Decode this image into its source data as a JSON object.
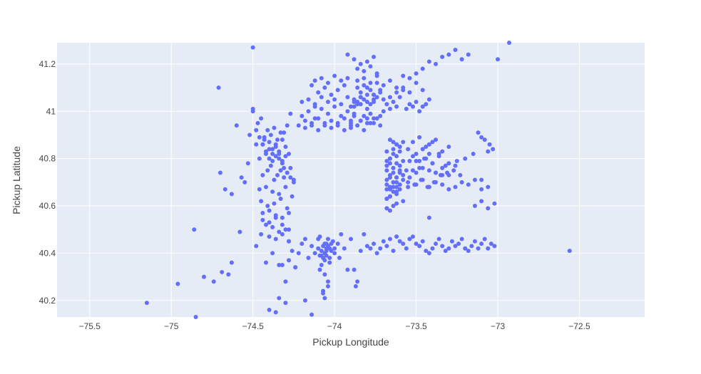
{
  "chart_data": {
    "type": "scatter",
    "xlabel": "Pickup Longitude",
    "ylabel": "Pickup Latitude",
    "xlim": [
      -75.7,
      -72.1
    ],
    "ylim": [
      40.13,
      41.29
    ],
    "x_ticks": [
      {
        "value": -75.5,
        "label": "−75.5"
      },
      {
        "value": -75,
        "label": "−75"
      },
      {
        "value": -74.5,
        "label": "−74.5"
      },
      {
        "value": -74,
        "label": "−74"
      },
      {
        "value": -73.5,
        "label": "−73.5"
      },
      {
        "value": -73,
        "label": "−73"
      },
      {
        "value": -72.5,
        "label": "−72.5"
      }
    ],
    "y_ticks": [
      {
        "value": 40.2,
        "label": "40.2"
      },
      {
        "value": 40.4,
        "label": "40.4"
      },
      {
        "value": 40.6,
        "label": "40.6"
      },
      {
        "value": 40.8,
        "label": "40.8"
      },
      {
        "value": 41.0,
        "label": "41"
      },
      {
        "value": 41.2,
        "label": "41.2"
      }
    ],
    "grid": true,
    "legend": false,
    "colors": {
      "marker": "#636efa",
      "plot_bg": "#e5ecf6",
      "grid": "#ffffff"
    },
    "x": [
      -75.15,
      -74.96,
      -74.85,
      -74.86,
      -74.8,
      -74.74,
      -74.71,
      -74.69,
      -74.67,
      -74.65,
      -74.63,
      -74.6,
      -74.58,
      -74.55,
      -74.52,
      -74.5,
      -74.48,
      -74.45,
      -74.42,
      -74.4,
      -74.38,
      -74.36,
      -74.34,
      -74.32,
      -74.3,
      -74.28,
      -74.26,
      -74.24,
      -74.22,
      -74.2,
      -74.18,
      -74.16,
      -74.14,
      -74.12,
      -74.1,
      -74.08,
      -74.06,
      -74.04,
      -74.02,
      -74.0,
      -73.98,
      -73.96,
      -73.94,
      -73.92,
      -73.9,
      -73.88,
      -73.86,
      -73.84,
      -73.82,
      -73.8,
      -73.78,
      -73.76,
      -73.74,
      -73.72,
      -73.7,
      -73.68,
      -73.66,
      -73.64,
      -73.62,
      -73.6,
      -73.58,
      -73.56,
      -73.54,
      -73.52,
      -73.5,
      -73.48,
      -73.46,
      -73.44,
      -73.42,
      -73.4,
      -73.38,
      -73.36,
      -73.34,
      -73.32,
      -73.3,
      -73.28,
      -73.26,
      -73.24,
      -73.22,
      -73.2,
      -73.18,
      -73.16,
      -73.14,
      -73.12,
      -73.1,
      -73.08,
      -73.06,
      -73.04,
      -73.02,
      -73.0,
      -72.93,
      -72.56,
      -74.48,
      -74.7,
      -74.63,
      -74.57,
      -74.53,
      -74.46,
      -74.43,
      -74.4,
      -74.38,
      -74.36,
      -74.34,
      -74.32,
      -74.31,
      -74.29,
      -74.27,
      -74.25,
      -74.44,
      -74.41,
      -74.39,
      -74.37,
      -74.35,
      -74.33,
      -74.31,
      -74.29,
      -74.27,
      -74.25,
      -74.46,
      -74.42,
      -74.38,
      -74.34,
      -74.3,
      -74.26,
      -74.45,
      -74.41,
      -74.37,
      -74.33,
      -74.29,
      -74.44,
      -74.4,
      -74.36,
      -74.32,
      -74.28,
      -74.44,
      -74.4,
      -74.36,
      -74.32,
      -74.28,
      -74.42,
      -74.38,
      -74.34,
      -74.3,
      -74.45,
      -74.41,
      -74.37,
      -74.33,
      -74.29,
      -74.47,
      -74.43,
      -74.39,
      -74.35,
      -74.31,
      -74.48,
      -74.44,
      -74.4,
      -74.36,
      -74.32,
      -74.46,
      -74.42,
      -74.38,
      -74.34,
      -74.3,
      -74.44,
      -74.4,
      -74.36,
      -74.32,
      -74.28,
      -74.42,
      -74.38,
      -74.34,
      -74.3,
      -74.4,
      -74.36,
      -74.32,
      -74.28,
      -74.09,
      -74.07,
      -74.05,
      -74.03,
      -74.01,
      -74.1,
      -74.08,
      -74.06,
      -74.04,
      -74.02,
      -74.09,
      -74.07,
      -74.05,
      -74.03,
      -74.08,
      -74.06,
      -74.04,
      -74.07,
      -74.05,
      -74.03,
      -74.06,
      -74.04,
      -74.0,
      -73.97,
      -74.09,
      -74.06,
      -73.95,
      -73.92,
      -73.87,
      -74.24,
      -74.18,
      -74.14,
      -74.28,
      -74.05,
      -74.07,
      -74.3,
      -74.34,
      -74.5,
      -74.5,
      -74.27,
      -74.12,
      -74.2,
      -74.16,
      -74.12,
      -74.08,
      -74.04,
      -74.0,
      -73.96,
      -73.92,
      -73.88,
      -73.84,
      -73.8,
      -73.76,
      -73.72,
      -74.22,
      -74.18,
      -74.14,
      -74.1,
      -74.06,
      -74.02,
      -73.98,
      -73.94,
      -73.9,
      -73.86,
      -73.82,
      -73.78,
      -73.74,
      -74.2,
      -74.16,
      -74.12,
      -74.08,
      -74.04,
      -74.0,
      -73.96,
      -73.92,
      -73.88,
      -73.84,
      -73.8,
      -73.76,
      -73.72,
      -74.14,
      -74.1,
      -74.06,
      -74.02,
      -73.98,
      -73.94,
      -73.9,
      -73.86,
      -73.82,
      -73.78,
      -74.18,
      -74.14,
      -74.1,
      -74.06,
      -74.02,
      -73.98,
      -73.94,
      -73.9,
      -73.86,
      -73.82,
      -73.78,
      -73.74,
      -74.12,
      -74.08,
      -74.04,
      -74.0,
      -73.96,
      -73.92,
      -73.88,
      -73.84,
      -73.8,
      -73.76,
      -73.9,
      -73.86,
      -73.82,
      -73.78,
      -73.74,
      -73.7,
      -73.88,
      -73.84,
      -73.8,
      -73.76,
      -73.72,
      -73.86,
      -73.82,
      -73.78,
      -73.74,
      -73.84,
      -73.8,
      -73.76,
      -73.72,
      -73.9,
      -73.86,
      -73.82,
      -73.78,
      -73.74,
      -73.88,
      -73.84,
      -73.8,
      -73.76,
      -73.92,
      -73.88,
      -73.84,
      -73.8,
      -73.76,
      -73.7,
      -73.66,
      -73.62,
      -73.58,
      -73.54,
      -73.5,
      -73.46,
      -73.42,
      -73.68,
      -73.64,
      -73.6,
      -73.56,
      -73.52,
      -73.48,
      -73.44,
      -73.66,
      -73.62,
      -73.58,
      -73.54,
      -73.5,
      -73.46,
      -73.7,
      -73.66,
      -73.62,
      -73.58,
      -73.54,
      -73.5,
      -73.46,
      -73.42,
      -73.38,
      -73.34,
      -73.3,
      -73.26,
      -73.22,
      -73.18,
      -73.14,
      -73.1,
      -73.06,
      -73.02,
      -73.68,
      -73.66,
      -73.64,
      -73.62,
      -73.6,
      -73.68,
      -73.66,
      -73.64,
      -73.62,
      -73.6,
      -73.58,
      -73.68,
      -73.66,
      -73.64,
      -73.62,
      -73.6,
      -73.58,
      -73.56,
      -73.68,
      -73.66,
      -73.64,
      -73.62,
      -73.6,
      -73.58,
      -73.68,
      -73.66,
      -73.64,
      -73.62,
      -73.6,
      -73.68,
      -73.66,
      -73.64,
      -73.62,
      -73.6,
      -73.58,
      -73.68,
      -73.66,
      -73.64,
      -73.62,
      -73.6,
      -73.68,
      -73.66,
      -73.64,
      -73.62,
      -73.68,
      -73.66,
      -73.64,
      -73.62,
      -73.6,
      -73.68,
      -73.66,
      -73.64,
      -73.62,
      -73.68,
      -73.66,
      -73.64,
      -73.55,
      -73.5,
      -73.46,
      -73.42,
      -73.38,
      -73.34,
      -73.3,
      -73.26,
      -73.22,
      -73.18,
      -73.14,
      -73.1,
      -73.06,
      -73.55,
      -73.51,
      -73.47,
      -73.43,
      -73.39,
      -73.35,
      -73.31,
      -73.27,
      -73.23,
      -73.54,
      -73.5,
      -73.46,
      -73.42,
      -73.38,
      -73.34,
      -73.3,
      -73.26,
      -73.52,
      -73.48,
      -73.44,
      -73.4,
      -73.36,
      -73.32,
      -73.54,
      -73.5,
      -73.46,
      -73.42,
      -73.38,
      -73.34,
      -73.3,
      -73.52,
      -73.48,
      -73.44,
      -73.4,
      -73.36,
      -73.55,
      -73.52,
      -73.5,
      -73.48,
      -73.45,
      -73.42,
      -73.4,
      -73.38,
      -73.34,
      -73.3,
      -73.12,
      -73.1,
      -73.08,
      -73.05,
      -73.03,
      -73.06,
      -73.15,
      -73.2,
      -73.25,
      -73.1,
      -73.42,
      -73.58,
      -73.62,
      -73.66
    ],
    "y": [
      40.19,
      40.27,
      40.13,
      40.5,
      40.3,
      40.28,
      41.1,
      40.32,
      40.67,
      40.31,
      40.36,
      40.94,
      40.49,
      40.7,
      40.9,
      41.27,
      40.43,
      40.97,
      40.36,
      40.16,
      40.4,
      40.15,
      40.21,
      40.35,
      40.19,
      40.37,
      40.41,
      40.34,
      40.4,
      40.44,
      40.46,
      40.38,
      40.43,
      40.4,
      40.42,
      40.39,
      40.44,
      40.46,
      40.41,
      40.42,
      40.44,
      40.48,
      40.42,
      40.33,
      40.46,
      40.33,
      40.28,
      40.41,
      40.48,
      40.43,
      40.42,
      40.44,
      40.4,
      40.42,
      40.45,
      40.43,
      40.46,
      40.41,
      40.47,
      40.45,
      40.44,
      40.42,
      40.46,
      40.47,
      40.44,
      40.43,
      40.45,
      40.41,
      40.4,
      40.42,
      40.44,
      40.46,
      40.43,
      40.41,
      40.42,
      40.45,
      40.43,
      40.44,
      40.46,
      40.42,
      40.41,
      40.43,
      40.45,
      40.42,
      40.44,
      40.46,
      40.42,
      40.44,
      40.43,
      41.22,
      41.29,
      40.41,
      40.86,
      40.74,
      40.65,
      40.72,
      40.78,
      40.8,
      40.88,
      40.84,
      40.82,
      40.86,
      40.8,
      40.78,
      40.76,
      40.74,
      40.72,
      40.7,
      40.73,
      40.75,
      40.77,
      40.71,
      40.73,
      40.75,
      40.72,
      40.74,
      40.76,
      40.71,
      40.67,
      40.68,
      40.66,
      40.65,
      40.68,
      40.64,
      40.62,
      40.6,
      40.61,
      40.63,
      40.59,
      40.57,
      40.58,
      40.56,
      40.55,
      40.57,
      40.54,
      40.53,
      40.55,
      40.52,
      40.5,
      40.52,
      40.51,
      40.49,
      40.5,
      40.48,
      40.92,
      40.93,
      40.91,
      40.94,
      40.95,
      40.89,
      40.9,
      40.88,
      40.91,
      40.92,
      40.86,
      40.87,
      40.85,
      40.88,
      40.89,
      40.83,
      40.84,
      40.82,
      40.85,
      40.86,
      40.8,
      40.81,
      40.79,
      40.82,
      40.82,
      40.79,
      40.83,
      40.81,
      40.47,
      40.46,
      40.48,
      40.45,
      40.47,
      40.43,
      40.44,
      40.42,
      40.45,
      40.46,
      40.41,
      40.4,
      40.43,
      40.44,
      40.39,
      40.38,
      40.41,
      40.36,
      40.35,
      40.37,
      40.28,
      40.24,
      40.42,
      40.38,
      40.31,
      40.26,
      40.4,
      40.38,
      40.33,
      40.21,
      40.11,
      40.1,
      40.26,
      40.34,
      40.2,
      40.14,
      40.45,
      40.39,
      40.23,
      40.28,
      40.35,
      41.0,
      41.01,
      40.99,
      41.02,
      40.98,
      41.0,
      40.97,
      41.01,
      40.99,
      41.02,
      40.98,
      41.0,
      40.99,
      40.96,
      40.97,
      40.95,
      40.98,
      40.94,
      40.96,
      40.95,
      40.97,
      40.94,
      40.96,
      40.95,
      40.97,
      40.94,
      41.04,
      41.05,
      41.03,
      41.06,
      41.04,
      41.05,
      41.03,
      41.06,
      41.04,
      41.05,
      41.03,
      41.06,
      41.04,
      41.08,
      41.1,
      41.07,
      41.09,
      41.11,
      41.08,
      41.1,
      41.07,
      41.09,
      41.11,
      40.93,
      40.94,
      40.92,
      40.95,
      40.93,
      40.94,
      40.92,
      40.95,
      40.93,
      40.94,
      40.92,
      40.95,
      41.13,
      41.14,
      41.12,
      41.15,
      41.13,
      41.14,
      41.12,
      41.15,
      41.13,
      41.14,
      41.02,
      41.03,
      41.01,
      41.04,
      41.02,
      41.03,
      40.98,
      40.99,
      40.97,
      41.0,
      40.98,
      41.06,
      41.07,
      41.05,
      41.08,
      41.1,
      41.11,
      41.09,
      41.12,
      40.96,
      40.95,
      40.97,
      40.94,
      40.96,
      41.18,
      41.17,
      41.19,
      41.16,
      41.22,
      41.2,
      41.21,
      41.23,
      41.24,
      41.05,
      41.06,
      41.04,
      41.07,
      41.05,
      41.06,
      41.08,
      41.09,
      41.03,
      41.04,
      41.02,
      41.05,
      41.03,
      41.04,
      41.06,
      41.01,
      41.02,
      41.0,
      41.03,
      41.01,
      41.02,
      41.1,
      41.08,
      41.12,
      41.09,
      41.11,
      41.13,
      41.1,
      41.15,
      41.14,
      41.16,
      41.18,
      41.21,
      41.2,
      41.23,
      41.24,
      41.26,
      41.22,
      41.24,
      40.6,
      40.62,
      40.59,
      40.61,
      40.63,
      40.64,
      40.66,
      40.65,
      40.67,
      40.63,
      40.64,
      40.68,
      40.7,
      40.69,
      40.71,
      40.67,
      40.68,
      40.7,
      40.72,
      40.74,
      40.73,
      40.75,
      40.71,
      40.72,
      40.76,
      40.78,
      40.77,
      40.79,
      40.75,
      40.8,
      40.82,
      40.81,
      40.83,
      40.79,
      40.8,
      40.84,
      40.86,
      40.85,
      40.87,
      40.83,
      40.88,
      40.87,
      40.86,
      40.85,
      40.59,
      40.58,
      40.6,
      40.61,
      40.59,
      40.73,
      40.74,
      40.72,
      40.75,
      40.77,
      40.78,
      40.76,
      40.68,
      40.69,
      40.67,
      40.7,
      40.68,
      40.69,
      40.71,
      40.68,
      40.7,
      40.69,
      40.67,
      40.68,
      40.7,
      40.69,
      40.71,
      40.67,
      40.68,
      40.7,
      40.69,
      40.71,
      40.68,
      40.7,
      40.73,
      40.74,
      40.75,
      40.73,
      40.72,
      40.74,
      40.76,
      40.75,
      40.74,
      40.76,
      40.78,
      40.77,
      40.75,
      40.79,
      40.8,
      40.78,
      40.81,
      40.77,
      40.79,
      40.82,
      40.84,
      40.86,
      40.88,
      40.83,
      40.85,
      40.87,
      40.89,
      40.85,
      40.87,
      40.82,
      40.84,
      40.81,
      40.79,
      40.76,
      40.8,
      40.82,
      40.78,
      40.74,
      40.73,
      40.73,
      40.91,
      40.89,
      40.88,
      40.86,
      40.84,
      40.83,
      40.82,
      40.8,
      40.79,
      40.71,
      40.55,
      40.62,
      40.66,
      40.64
    ]
  }
}
